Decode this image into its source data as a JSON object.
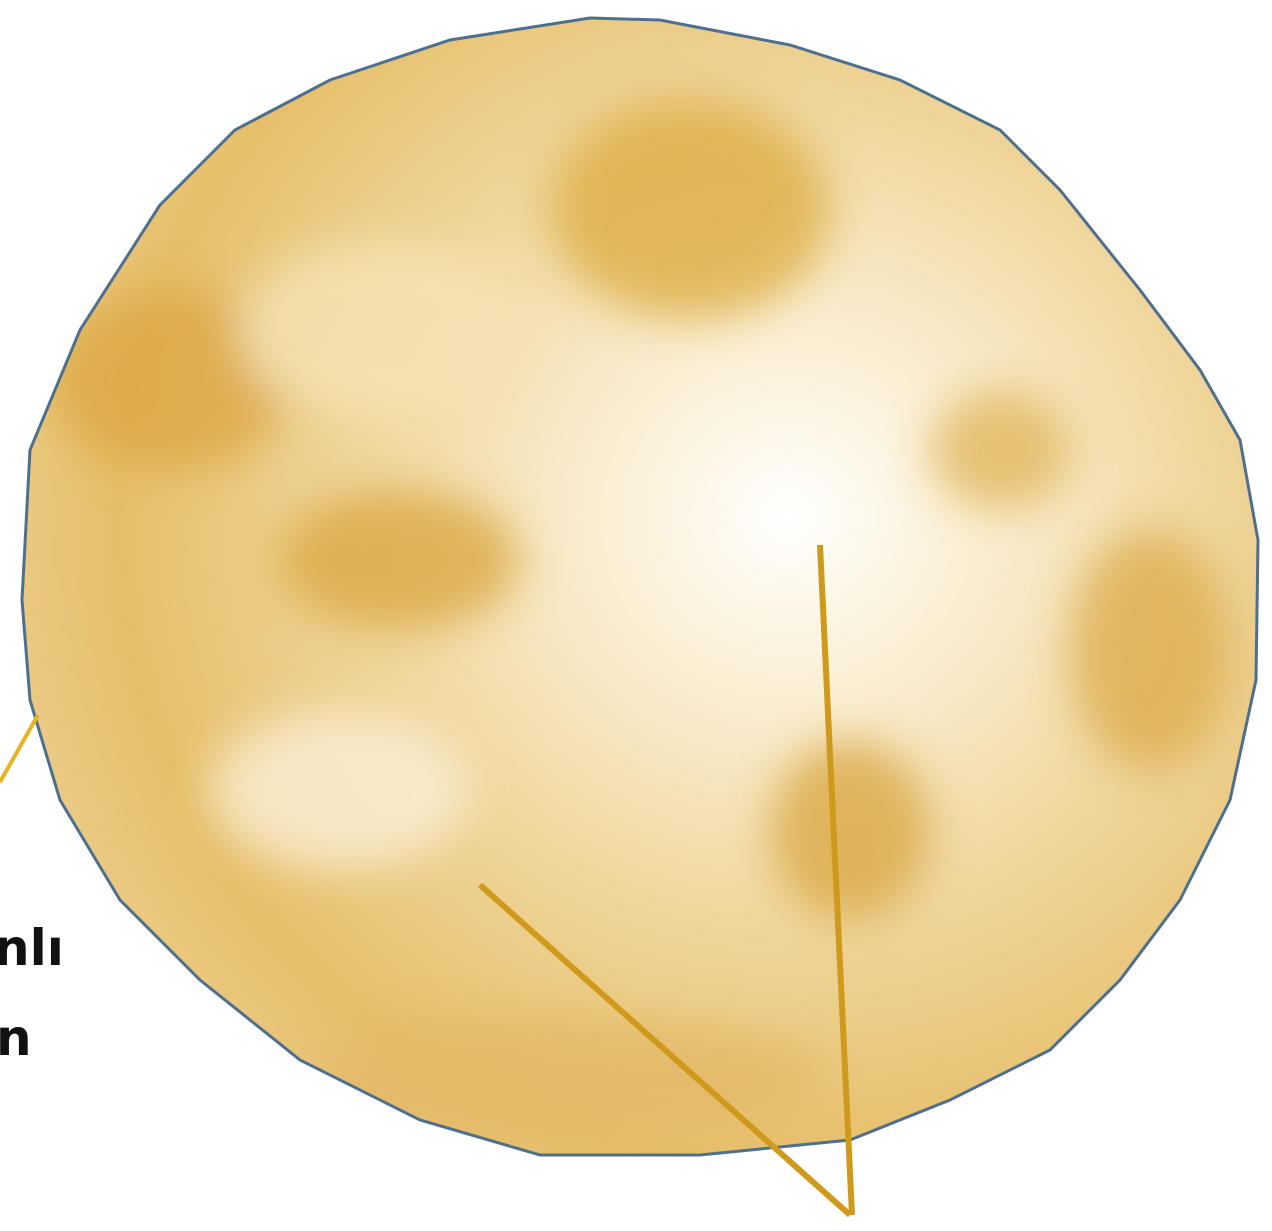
{
  "labels": [
    "nlı",
    "n"
  ]
}
